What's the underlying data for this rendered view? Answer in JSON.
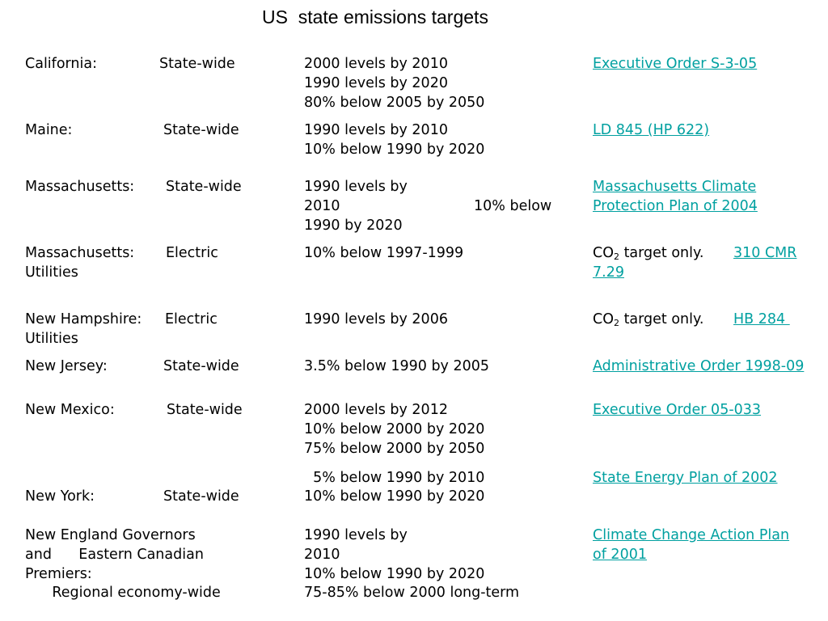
{
  "title": "US  state emissions targets",
  "rows": [
    {
      "state": "California:",
      "scope": "State-wide",
      "targets": [
        "2000 levels by 2010",
        "1990 levels by 2020",
        "80% below 2005 by 2050"
      ],
      "ref_link": "Executive Order S-3-05"
    },
    {
      "state": "Maine:",
      "scope": "State-wide",
      "targets": [
        "1990 levels by 2010",
        "10% below 1990 by 2020"
      ],
      "ref_link": "LD 845 (HP 622)"
    },
    {
      "state": "Massachusetts:",
      "scope": "State-wide",
      "targets": [
        "1990 levels by",
        "2010",
        "10% below",
        "1990 by 2020"
      ],
      "ref_link_lines": [
        "Massachusetts Climate",
        "Protection Plan of 2004"
      ]
    },
    {
      "state": "Massachusetts:",
      "scope": "Electric",
      "scope_cont": "Utilities",
      "targets": [
        "10% below 1997-1999"
      ],
      "ref_prefix": "CO",
      "ref_prefix_sub": "2",
      "ref_prefix_after": " target only.",
      "ref_link_lines": [
        "310 CMR",
        "7.29"
      ]
    },
    {
      "state": "New Hampshire:",
      "scope": "Electric",
      "scope_cont": "Utilities",
      "targets": [
        "1990 levels by 2006"
      ],
      "ref_prefix": "CO",
      "ref_prefix_sub": "2",
      "ref_prefix_after": " target only.",
      "ref_link": "HB 284 "
    },
    {
      "state": "New Jersey:",
      "scope": "State-wide",
      "targets": [
        "3.5% below 1990 by 2005"
      ],
      "ref_link": "Administrative Order 1998-09"
    },
    {
      "state": "New Mexico:",
      "scope": "State-wide",
      "targets": [
        "2000 levels by 2012",
        "10% below 2000 by 2020",
        "75% below 2000 by 2050"
      ],
      "ref_link": "Executive Order 05-033"
    },
    {
      "state": "New York:",
      "scope": "State-wide",
      "targets": [
        "  5% below 1990 by 2010",
        "10% below 1990 by 2020"
      ],
      "ref_link": "State Energy Plan of 2002"
    },
    {
      "state_lines": [
        "New England Governors",
        "and      Eastern Canadian",
        "Premiers:",
        "      Regional economy-wide"
      ],
      "targets": [
        "1990 levels by",
        "2010",
        "10% below 1990 by 2020",
        "75-85% below 2000 long-term"
      ],
      "ref_link_lines": [
        "Climate Change Action Plan",
        "of 2001"
      ]
    }
  ]
}
